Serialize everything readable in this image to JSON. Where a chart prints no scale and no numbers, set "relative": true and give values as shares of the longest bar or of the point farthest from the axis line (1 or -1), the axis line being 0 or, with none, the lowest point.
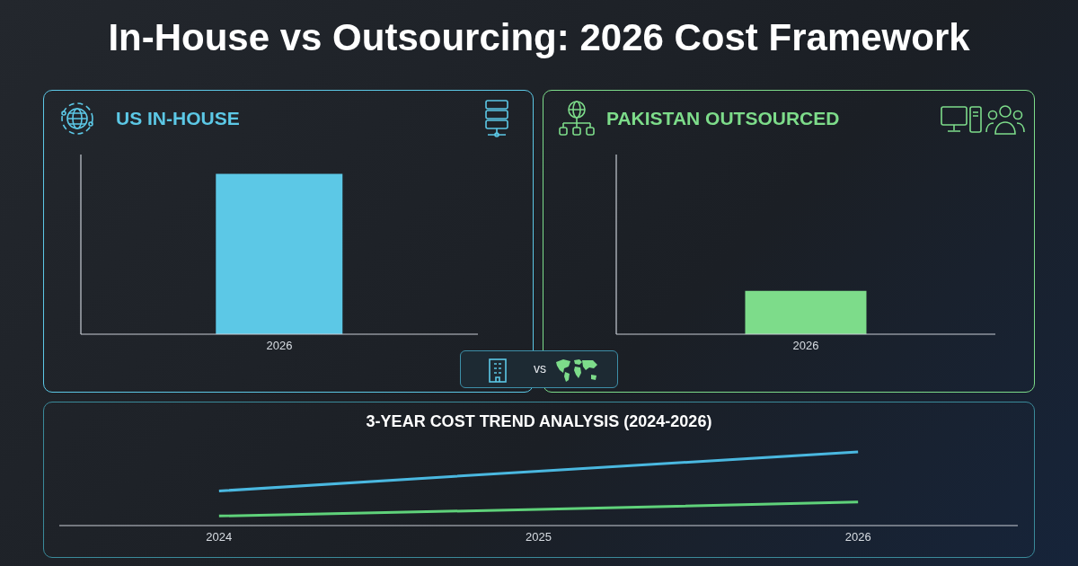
{
  "chart_data": [
    {
      "type": "bar",
      "title": "In-House vs Outsourcing: 2026 Cost Framework",
      "categories": [
        "2026",
        "2026"
      ],
      "relative": true,
      "series": [
        {
          "name": "US IN-HOUSE",
          "color": "#5cc8e6",
          "values": [
            1,
            null
          ]
        },
        {
          "name": "PAKISTAN OUTSOURCED",
          "color": "#7ddc8a",
          "values": [
            null,
            0.27
          ]
        }
      ],
      "annotations": [
        "vs"
      ],
      "legend": "top"
    },
    {
      "type": "line",
      "title": "3-YEAR COST TREND ANALYSIS (2024-2026)",
      "categories": [
        "2024",
        "2025",
        "2026"
      ],
      "relative": true,
      "series": [
        {
          "color": "#4ab8e0",
          "values": [
            0.47,
            0.74,
            1
          ]
        },
        {
          "color": "#5fd27a",
          "values": [
            0.13,
            0.22,
            0.32
          ]
        }
      ]
    }
  ]
}
